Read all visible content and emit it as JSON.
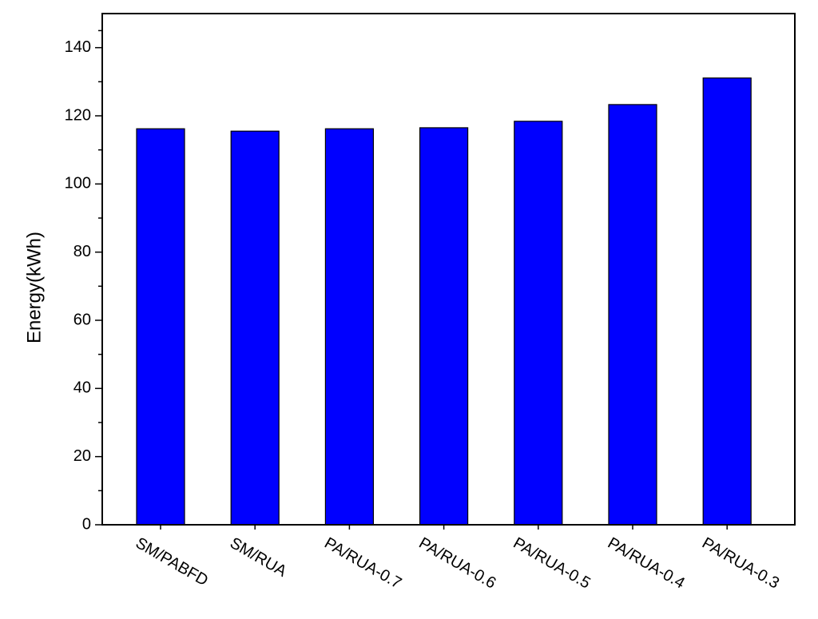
{
  "chart_data": {
    "type": "bar",
    "y_label": "Energy(kWh)",
    "categories": [
      "SM/PABFD",
      "SM/RUA",
      "PA/RUA-0.7",
      "PA/RUA-0.6",
      "PA/RUA-0.5",
      "PA/RUA-0.4",
      "PA/RUA-0.3"
    ],
    "values": [
      116.2,
      115.5,
      116.2,
      116.5,
      118.4,
      123.3,
      131.1
    ],
    "color": "#0000ff",
    "ylim": [
      0,
      150
    ],
    "yticks": [
      0,
      20,
      40,
      60,
      80,
      100,
      120,
      140
    ],
    "grid": false
  }
}
